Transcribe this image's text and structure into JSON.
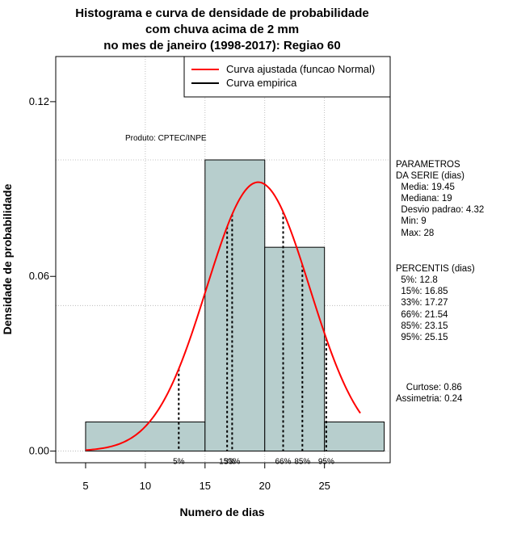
{
  "chart_data": {
    "type": "bar",
    "title": [
      "Histograma e curva de densidade de probabilidade",
      "com chuva acima de 2 mm",
      "no mes de janeiro (1998-2017): Regiao 60"
    ],
    "xlabel": "Numero de dias",
    "ylabel": "Densidade de probabilidade",
    "xlim": [
      2.5,
      30.5
    ],
    "ylim": [
      -0.004,
      0.1355
    ],
    "x_ticks": [
      5,
      10,
      15,
      20,
      25
    ],
    "y_ticks": [
      0.0,
      0.06,
      0.12
    ],
    "y_tick_labels": [
      "0.00",
      "0.06",
      "0.12"
    ],
    "grid_x": [
      10,
      15,
      20,
      25
    ],
    "grid_y": [
      0.05,
      0.1
    ],
    "bins": [
      {
        "from": 5,
        "to": 15,
        "density": 0.01
      },
      {
        "from": 15,
        "to": 20,
        "density": 0.1
      },
      {
        "from": 20,
        "to": 25,
        "density": 0.07
      },
      {
        "from": 25,
        "to": 30,
        "density": 0.01
      }
    ],
    "normal_curve": {
      "mean": 19.45,
      "sd": 4.32,
      "x_range": [
        5,
        28
      ]
    },
    "percentile_lines": [
      {
        "label": "5%",
        "x": 12.8
      },
      {
        "label": "15%",
        "x": 16.85
      },
      {
        "label": "33%",
        "x": 17.27
      },
      {
        "label": "66%",
        "x": 21.54
      },
      {
        "label": "85%",
        "x": 23.15
      },
      {
        "label": "95%",
        "x": 25.15
      }
    ],
    "legend": [
      {
        "label": "Curva ajustada (funcao Normal)",
        "color": "#ff0000"
      },
      {
        "label": "Curva empirica",
        "color": "#000000"
      }
    ],
    "legend_position": "top-right",
    "annotation": "Produto: CPTEC/INPE",
    "colors": {
      "bar_fill": "#b7cecd",
      "curve": "#ff0000",
      "grid": "#b0b0b0"
    }
  },
  "side_panel": {
    "parametros": [
      "PARAMETROS",
      "DA SERIE (dias)",
      "  Media: 19.45",
      "  Mediana: 19",
      "  Desvio padrao: 4.32",
      "  Min: 9",
      "  Max: 28"
    ],
    "percentis": [
      "PERCENTIS (dias)",
      "  5%: 12.8",
      "  15%: 16.85",
      "  33%: 17.27",
      "  66%: 21.54",
      "  85%: 23.15",
      "  95%: 25.15"
    ],
    "extra": [
      "    Curtose: 0.86",
      "Assimetria: 0.24"
    ]
  }
}
